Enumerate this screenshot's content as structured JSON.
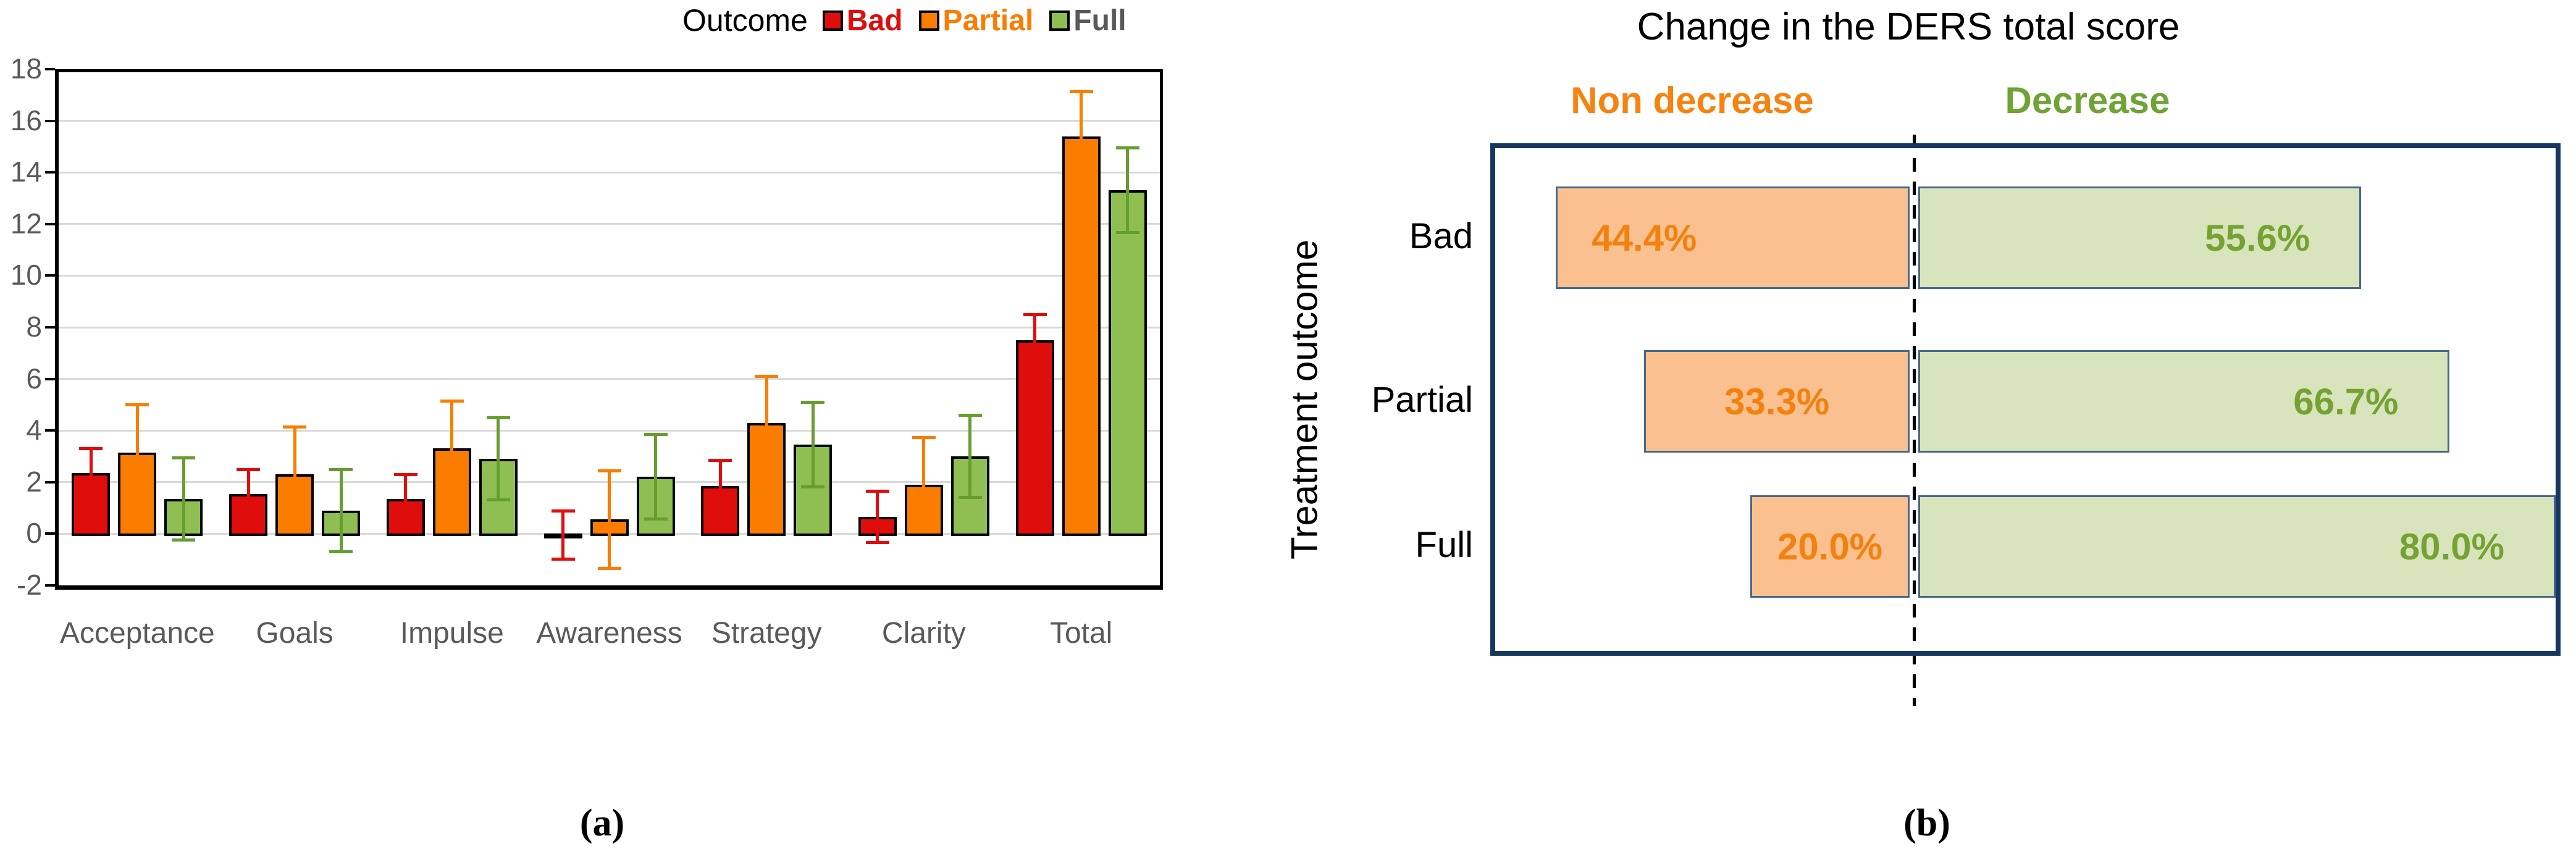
{
  "figure": {
    "caption_a": "(a)",
    "caption_b": "(b)"
  },
  "colors": {
    "bad_red": "#E00D0D",
    "partial_orange": "#FA7D00",
    "full_green": "#8FBF52",
    "full_green_error": "#679D30",
    "axis_text_gray": "#595959",
    "gridline_gray": "#D9D9D9",
    "b_box_border_navy": "#17375E",
    "b_bar_border_slate": "#46688C",
    "b_orange_fill": "#FBC08F",
    "b_orange_text": "#F2810D",
    "b_green_fill": "#D7E4BC",
    "b_green_text": "#76A233",
    "b_header_orange": "#F8820E",
    "b_header_green": "#6FA335"
  },
  "chart_data": [
    {
      "id": "ders-subscale-change-by-outcome",
      "type": "bar",
      "legend_title": "Outcome",
      "legend_position": "top-right",
      "grid": true,
      "ylim": [
        -2,
        18
      ],
      "yticks": [
        18,
        16,
        14,
        12,
        10,
        8,
        6,
        4,
        2,
        0,
        -2
      ],
      "categories": [
        "Acceptance",
        "Goals",
        "Impulse",
        "Awareness",
        "Strategy",
        "Clarity",
        "Total"
      ],
      "series": [
        {
          "name": "Bad",
          "color": "#E00D0D",
          "error_color": "#E00D0D",
          "label_color": "#E00D0D",
          "values": [
            2.35,
            1.55,
            1.35,
            -0.05,
            1.85,
            0.65,
            7.5
          ],
          "errors": [
            0.95,
            0.95,
            0.95,
            0.95,
            1.0,
            1.0,
            1.0
          ]
        },
        {
          "name": "Partial",
          "color": "#FA7D00",
          "error_color": "#FA7D00",
          "label_color": "#FA7D00",
          "values": [
            3.15,
            2.3,
            3.3,
            0.55,
            4.3,
            1.9,
            15.4
          ],
          "errors": [
            1.85,
            1.85,
            1.85,
            1.9,
            1.8,
            1.85,
            1.75
          ]
        },
        {
          "name": "Full",
          "color": "#8FBF52",
          "error_color": "#679D30",
          "label_color": "#595959",
          "values": [
            1.35,
            0.9,
            2.9,
            2.2,
            3.45,
            3.0,
            13.3
          ],
          "errors": [
            1.6,
            1.6,
            1.6,
            1.65,
            1.65,
            1.6,
            1.65
          ]
        }
      ]
    },
    {
      "id": "ders-total-score-change",
      "type": "diverging-bar",
      "title": "Change in the DERS total score",
      "xlabel_left": "Non decrease",
      "xlabel_right": "Decrease",
      "ylabel": "Treatment outcome",
      "categories": [
        "Bad",
        "Partial",
        "Full"
      ],
      "series": [
        {
          "name": "Non decrease",
          "side": "left",
          "fill": "#FBC08F",
          "text_color": "#F2810D",
          "values": [
            44.4,
            33.3,
            20.0
          ],
          "labels": [
            "44.4%",
            "33.3%",
            "20.0%"
          ]
        },
        {
          "name": "Decrease",
          "side": "right",
          "fill": "#D7E4BC",
          "text_color": "#76A233",
          "values": [
            55.6,
            66.7,
            80.0
          ],
          "labels": [
            "55.6%",
            "66.7%",
            "80.0%"
          ]
        }
      ]
    }
  ]
}
